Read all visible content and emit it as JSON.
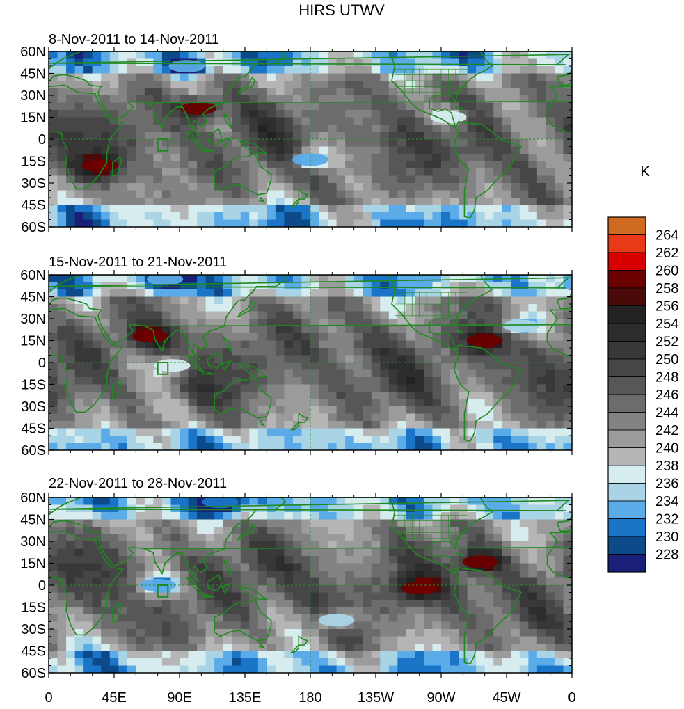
{
  "chart_data": {
    "type": "heatmap",
    "title": "HIRS UTWV",
    "units_label": "K",
    "y_tick_labels": [
      "60N",
      "45N",
      "30N",
      "15N",
      "0",
      "15S",
      "30S",
      "45S",
      "60S"
    ],
    "x_tick_labels": [
      "0",
      "45E",
      "90E",
      "135E",
      "180",
      "135W",
      "90W",
      "45W",
      "0"
    ],
    "lon_range": [
      0,
      360
    ],
    "lat_range": [
      -60,
      60
    ],
    "colorbar": {
      "levels": [
        228,
        230,
        232,
        234,
        236,
        238,
        240,
        242,
        244,
        246,
        248,
        250,
        252,
        254,
        256,
        258,
        260,
        262,
        264
      ],
      "colors": [
        "#1b1f7a",
        "#0c4a8a",
        "#1a74c8",
        "#5aabe8",
        "#a9d4e6",
        "#d6ecee",
        "#b5b5b5",
        "#9b9b9b",
        "#838383",
        "#6c6c6c",
        "#575757",
        "#464646",
        "#383838",
        "#2d2d2d",
        "#222222",
        "#4a0a0a",
        "#6a0000",
        "#d80000",
        "#e83a16",
        "#d06a20"
      ]
    },
    "panels": [
      {
        "subtitle": "8-Nov-2011 to 14-Nov-2011",
        "features": [
          {
            "kind": "moist",
            "lon": 103,
            "lat": 21,
            "level": 258
          },
          {
            "kind": "moist",
            "lon": 35,
            "lat": -18,
            "level": 258
          },
          {
            "kind": "dry",
            "lon": 180,
            "lat": -14,
            "level": 232
          },
          {
            "kind": "dry",
            "lon": 275,
            "lat": 15,
            "level": 236
          },
          {
            "kind": "dry",
            "lon": 95,
            "lat": 50,
            "level": 232
          }
        ]
      },
      {
        "subtitle": "15-Nov-2011 to 21-Nov-2011",
        "features": [
          {
            "kind": "moist",
            "lon": 70,
            "lat": 18,
            "level": 258
          },
          {
            "kind": "moist",
            "lon": 300,
            "lat": 15,
            "level": 258
          },
          {
            "kind": "dry",
            "lon": 325,
            "lat": 25,
            "level": 234
          },
          {
            "kind": "dry",
            "lon": 80,
            "lat": 57,
            "level": 232
          },
          {
            "kind": "dry",
            "lon": 85,
            "lat": -2,
            "level": 236
          }
        ]
      },
      {
        "subtitle": "22-Nov-2011 to 28-Nov-2011",
        "features": [
          {
            "kind": "dry",
            "lon": 75,
            "lat": 0,
            "level": 232
          },
          {
            "kind": "moist",
            "lon": 255,
            "lat": -2,
            "level": 258
          },
          {
            "kind": "moist",
            "lon": 297,
            "lat": 16,
            "level": 258
          },
          {
            "kind": "dry",
            "lon": 118,
            "lat": 57,
            "level": 230
          },
          {
            "kind": "dry",
            "lon": 198,
            "lat": -24,
            "level": 234
          }
        ]
      }
    ]
  }
}
